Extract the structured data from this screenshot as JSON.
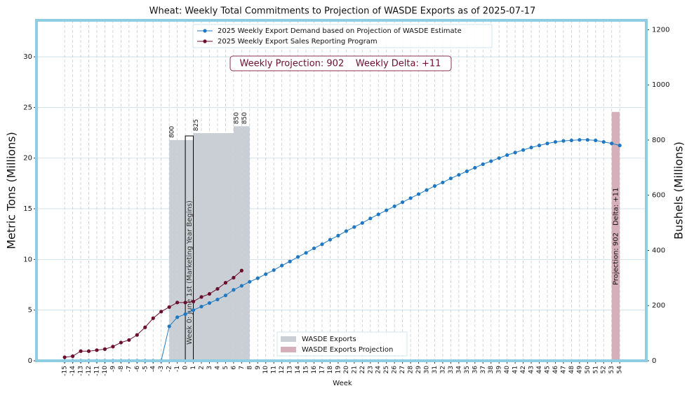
{
  "chart_data": {
    "type": "line",
    "title": "Wheat: Weekly Total Commitments to Projection of WASDE Exports as of 2025-07-17",
    "xlabel": "Week",
    "ylabel": "Metric Tons (Millions)",
    "y2label": "Bushels (Millions)",
    "grid": true,
    "xlim": [
      -18.5,
      57.3
    ],
    "xticks": [
      -15,
      -14,
      -13,
      -12,
      -11,
      -10,
      -9,
      -8,
      -7,
      -6,
      -5,
      -4,
      -3,
      -2,
      -1,
      0,
      1,
      2,
      3,
      4,
      5,
      6,
      7,
      8,
      9,
      10,
      11,
      12,
      13,
      14,
      15,
      16,
      17,
      18,
      19,
      20,
      21,
      22,
      23,
      24,
      25,
      26,
      27,
      28,
      29,
      30,
      31,
      32,
      33,
      34,
      35,
      36,
      37,
      38,
      39,
      40,
      41,
      42,
      43,
      44,
      45,
      46,
      47,
      48,
      49,
      50,
      51,
      52,
      53,
      54
    ],
    "ylim": [
      0,
      33.6
    ],
    "yticks": [
      0,
      5,
      10,
      15,
      20,
      25,
      30
    ],
    "y2lim": [
      0,
      1234
    ],
    "y2ticks": [
      0,
      200,
      400,
      600,
      800,
      1000,
      1200
    ],
    "x": [
      -15,
      -14,
      -13,
      -12,
      -11,
      -10,
      -9,
      -8,
      -7,
      -6,
      -5,
      -4,
      -3,
      -2,
      -1,
      0,
      1,
      2,
      3,
      4,
      5,
      6,
      7,
      8,
      9,
      10,
      11,
      12,
      13,
      14,
      15,
      16,
      17,
      18,
      19,
      20,
      21,
      22,
      23,
      24,
      25,
      26,
      27,
      28,
      29,
      30,
      31,
      32,
      33,
      34,
      35,
      36,
      37,
      38,
      39,
      40,
      41,
      42,
      43,
      44,
      45,
      46,
      47,
      48,
      49,
      50,
      51,
      52,
      53,
      54
    ],
    "series": [
      {
        "name": "2025 Weekly Export Demand based on Projection of WASDE Estimate",
        "color": "#1f78c1",
        "values": [
          0,
          0,
          0,
          0,
          0,
          0,
          0,
          0,
          0,
          0,
          0,
          0,
          0,
          3.4,
          4.3,
          4.6,
          5.0,
          5.35,
          5.7,
          6.05,
          6.45,
          7.0,
          7.4,
          7.8,
          8.15,
          8.55,
          8.95,
          9.4,
          9.8,
          10.25,
          10.65,
          11.1,
          11.5,
          11.95,
          12.35,
          12.8,
          13.2,
          13.6,
          14.05,
          14.45,
          14.85,
          15.25,
          15.65,
          16.05,
          16.45,
          16.85,
          17.25,
          17.6,
          18.0,
          18.35,
          18.7,
          19.05,
          19.4,
          19.7,
          20.0,
          20.3,
          20.55,
          20.8,
          21.05,
          21.25,
          21.45,
          21.6,
          21.7,
          21.75,
          21.8,
          21.8,
          21.75,
          21.6,
          21.45,
          21.25
        ]
      },
      {
        "name": "2025 Weekly Export Sales Reporting Program",
        "color": "#6b0f2e",
        "values": [
          0.35,
          0.45,
          0.95,
          0.95,
          1.05,
          1.15,
          1.4,
          1.8,
          2.05,
          2.55,
          3.3,
          4.2,
          4.85,
          5.3,
          5.75,
          5.75,
          5.85,
          6.3,
          6.6,
          7.1,
          7.7,
          8.2,
          8.9,
          null,
          null,
          null,
          null,
          null,
          null,
          null,
          null,
          null,
          null,
          null,
          null,
          null,
          null,
          null,
          null,
          null,
          null,
          null,
          null,
          null,
          null,
          null,
          null,
          null,
          null,
          null,
          null,
          null,
          null,
          null,
          null,
          null,
          null,
          null,
          null,
          null,
          null,
          null,
          null,
          null,
          null,
          null,
          null,
          null,
          null,
          null
        ]
      }
    ],
    "bars": {
      "name": "WASDE Exports",
      "color": "#c9cfd4",
      "axis": "y2",
      "x": [
        -2,
        -1,
        0,
        1,
        2,
        3,
        4,
        5,
        6,
        7
      ],
      "values": [
        800,
        800,
        800,
        825,
        825,
        825,
        825,
        825,
        850,
        850
      ],
      "value_labels": [
        "800",
        null,
        null,
        "825",
        null,
        null,
        null,
        null,
        "850",
        "850"
      ]
    },
    "marker_bar": {
      "x": 0,
      "value": 815,
      "axis": "y2",
      "label": "Week 0: June 1st (Marketing Year Begins)"
    },
    "projection_bar": {
      "name": "WASDE Exports Projection",
      "color": "#d5b0bb",
      "axis": "y2",
      "x": 53,
      "value": 902,
      "labels": [
        "Projection: 902",
        "Delta: +11"
      ]
    },
    "annotation": "Weekly Projection: 902    Weekly Delta: +11"
  }
}
